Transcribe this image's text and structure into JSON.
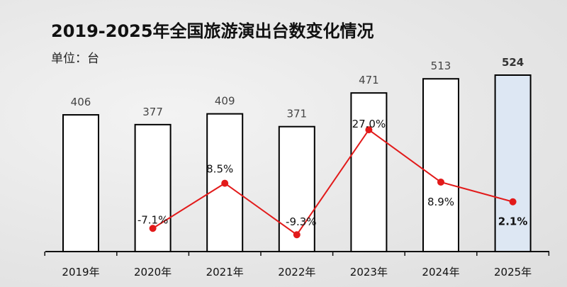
{
  "title": "2019-2025年全国旅游演出台数变化情况",
  "unit_label": "单位：台",
  "colors": {
    "bar_fill": "#ffffff",
    "bar_highlight_fill": "#dde7f3",
    "bar_stroke": "#000000",
    "line": "#e21a1a",
    "axis": "#111111"
  },
  "chart_data": {
    "type": "bar",
    "title": "2019-2025年全国旅游演出台数变化情况",
    "xlabel": "",
    "ylabel": "单位：台",
    "categories": [
      "2019年",
      "2020年",
      "2021年",
      "2022年",
      "2023年",
      "2024年",
      "2025年"
    ],
    "ylim": [
      0,
      540
    ],
    "grid": false,
    "highlight_index": 6,
    "series": [
      {
        "type": "bar",
        "values": [
          406,
          377,
          409,
          371,
          471,
          513,
          524
        ],
        "labels": [
          "406",
          "377",
          "409",
          "371",
          "471",
          "513",
          "524"
        ]
      },
      {
        "type": "line",
        "values": [
          null,
          -7.1,
          8.5,
          -9.3,
          27.0,
          8.9,
          2.1
        ],
        "labels": [
          "",
          "-7.1%",
          "8.5%",
          "-9.3%",
          "27.0%",
          "8.9%",
          "2.1%"
        ]
      }
    ]
  }
}
